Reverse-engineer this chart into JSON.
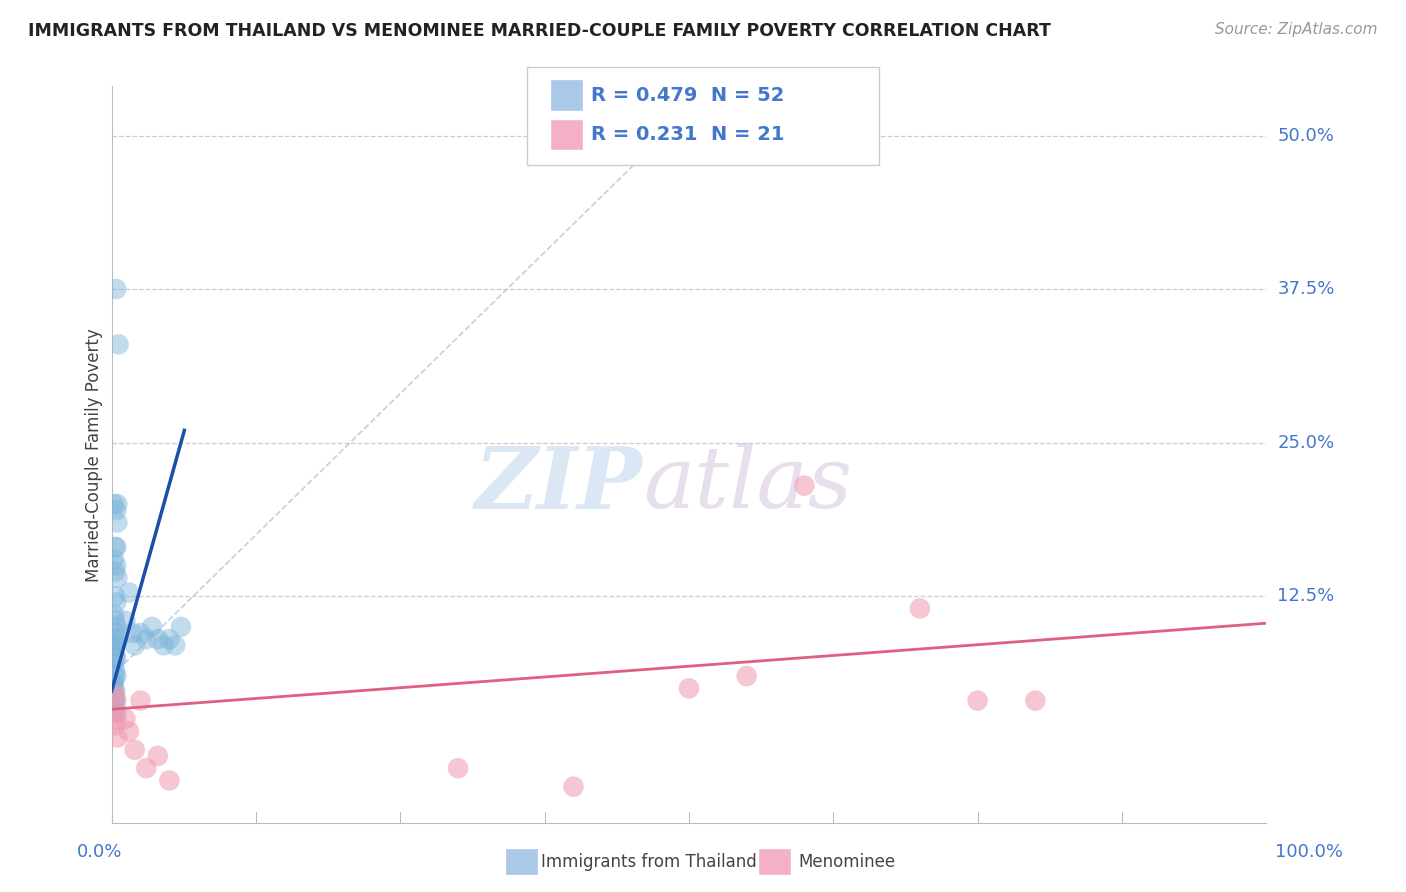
{
  "title": "IMMIGRANTS FROM THAILAND VS MENOMINEE MARRIED-COUPLE FAMILY POVERTY CORRELATION CHART",
  "source": "Source: ZipAtlas.com",
  "ylabel": "Married-Couple Family Poverty",
  "x_min": 0.0,
  "x_max": 1.0,
  "y_min": -0.06,
  "y_max": 0.54,
  "legend_label_1": "Immigrants from Thailand",
  "legend_label_2": "Menominee",
  "blue_color": "#7ab3d9",
  "pink_color": "#f09ab0",
  "blue_line_color": "#1a4faa",
  "pink_line_color": "#e06080",
  "blue_legend_color": "#aac8e8",
  "pink_legend_color": "#f4b0c4",
  "background_color": "#ffffff",
  "title_color": "#222222",
  "axis_label_color": "#4477cc",
  "blue_scatter_x": [
    0.003,
    0.004,
    0.005,
    0.006,
    0.002,
    0.004,
    0.005,
    0.003,
    0.004,
    0.002,
    0.003,
    0.004,
    0.005,
    0.003,
    0.004,
    0.002,
    0.003,
    0.004,
    0.003,
    0.005,
    0.002,
    0.003,
    0.002,
    0.004,
    0.003,
    0.002,
    0.003,
    0.003,
    0.004,
    0.002,
    0.001,
    0.002,
    0.003,
    0.002,
    0.003,
    0.003,
    0.002,
    0.003,
    0.002,
    0.004,
    0.015,
    0.02,
    0.025,
    0.03,
    0.035,
    0.04,
    0.045,
    0.05,
    0.055,
    0.06,
    0.012,
    0.018
  ],
  "blue_scatter_y": [
    0.085,
    0.375,
    0.2,
    0.33,
    0.2,
    0.195,
    0.185,
    0.165,
    0.165,
    0.155,
    0.145,
    0.15,
    0.14,
    0.125,
    0.12,
    0.11,
    0.105,
    0.1,
    0.095,
    0.09,
    0.09,
    0.085,
    0.08,
    0.075,
    0.075,
    0.07,
    0.065,
    0.06,
    0.06,
    0.055,
    0.055,
    0.05,
    0.048,
    0.045,
    0.042,
    0.04,
    0.038,
    0.035,
    0.032,
    0.03,
    0.128,
    0.085,
    0.095,
    0.09,
    0.1,
    0.09,
    0.085,
    0.09,
    0.085,
    0.1,
    0.105,
    0.095
  ],
  "pink_scatter_x": [
    0.002,
    0.004,
    0.005,
    0.003,
    0.003,
    0.004,
    0.025,
    0.03,
    0.015,
    0.02,
    0.04,
    0.05,
    0.012,
    0.6,
    0.7,
    0.75,
    0.8,
    0.3,
    0.4,
    0.5,
    0.55
  ],
  "pink_scatter_y": [
    0.03,
    0.025,
    0.01,
    0.02,
    0.045,
    0.04,
    0.04,
    -0.015,
    0.015,
    0.0,
    -0.005,
    -0.025,
    0.025,
    0.215,
    0.115,
    0.04,
    0.04,
    -0.015,
    -0.03,
    0.05,
    0.06
  ],
  "blue_line": [
    0.0,
    0.048,
    0.063,
    0.26
  ],
  "pink_line": [
    0.0,
    0.033,
    1.0,
    0.103
  ],
  "dash_line": [
    0.0,
    0.06,
    0.5,
    0.52
  ],
  "ytick_positions": [
    0.125,
    0.25,
    0.375,
    0.5
  ],
  "ytick_labels": [
    "12.5%",
    "25.0%",
    "37.5%",
    "50.0%"
  ],
  "xtick_positions": [
    0.0,
    0.125,
    0.25,
    0.375,
    0.5,
    0.625,
    0.75,
    0.875,
    1.0
  ]
}
